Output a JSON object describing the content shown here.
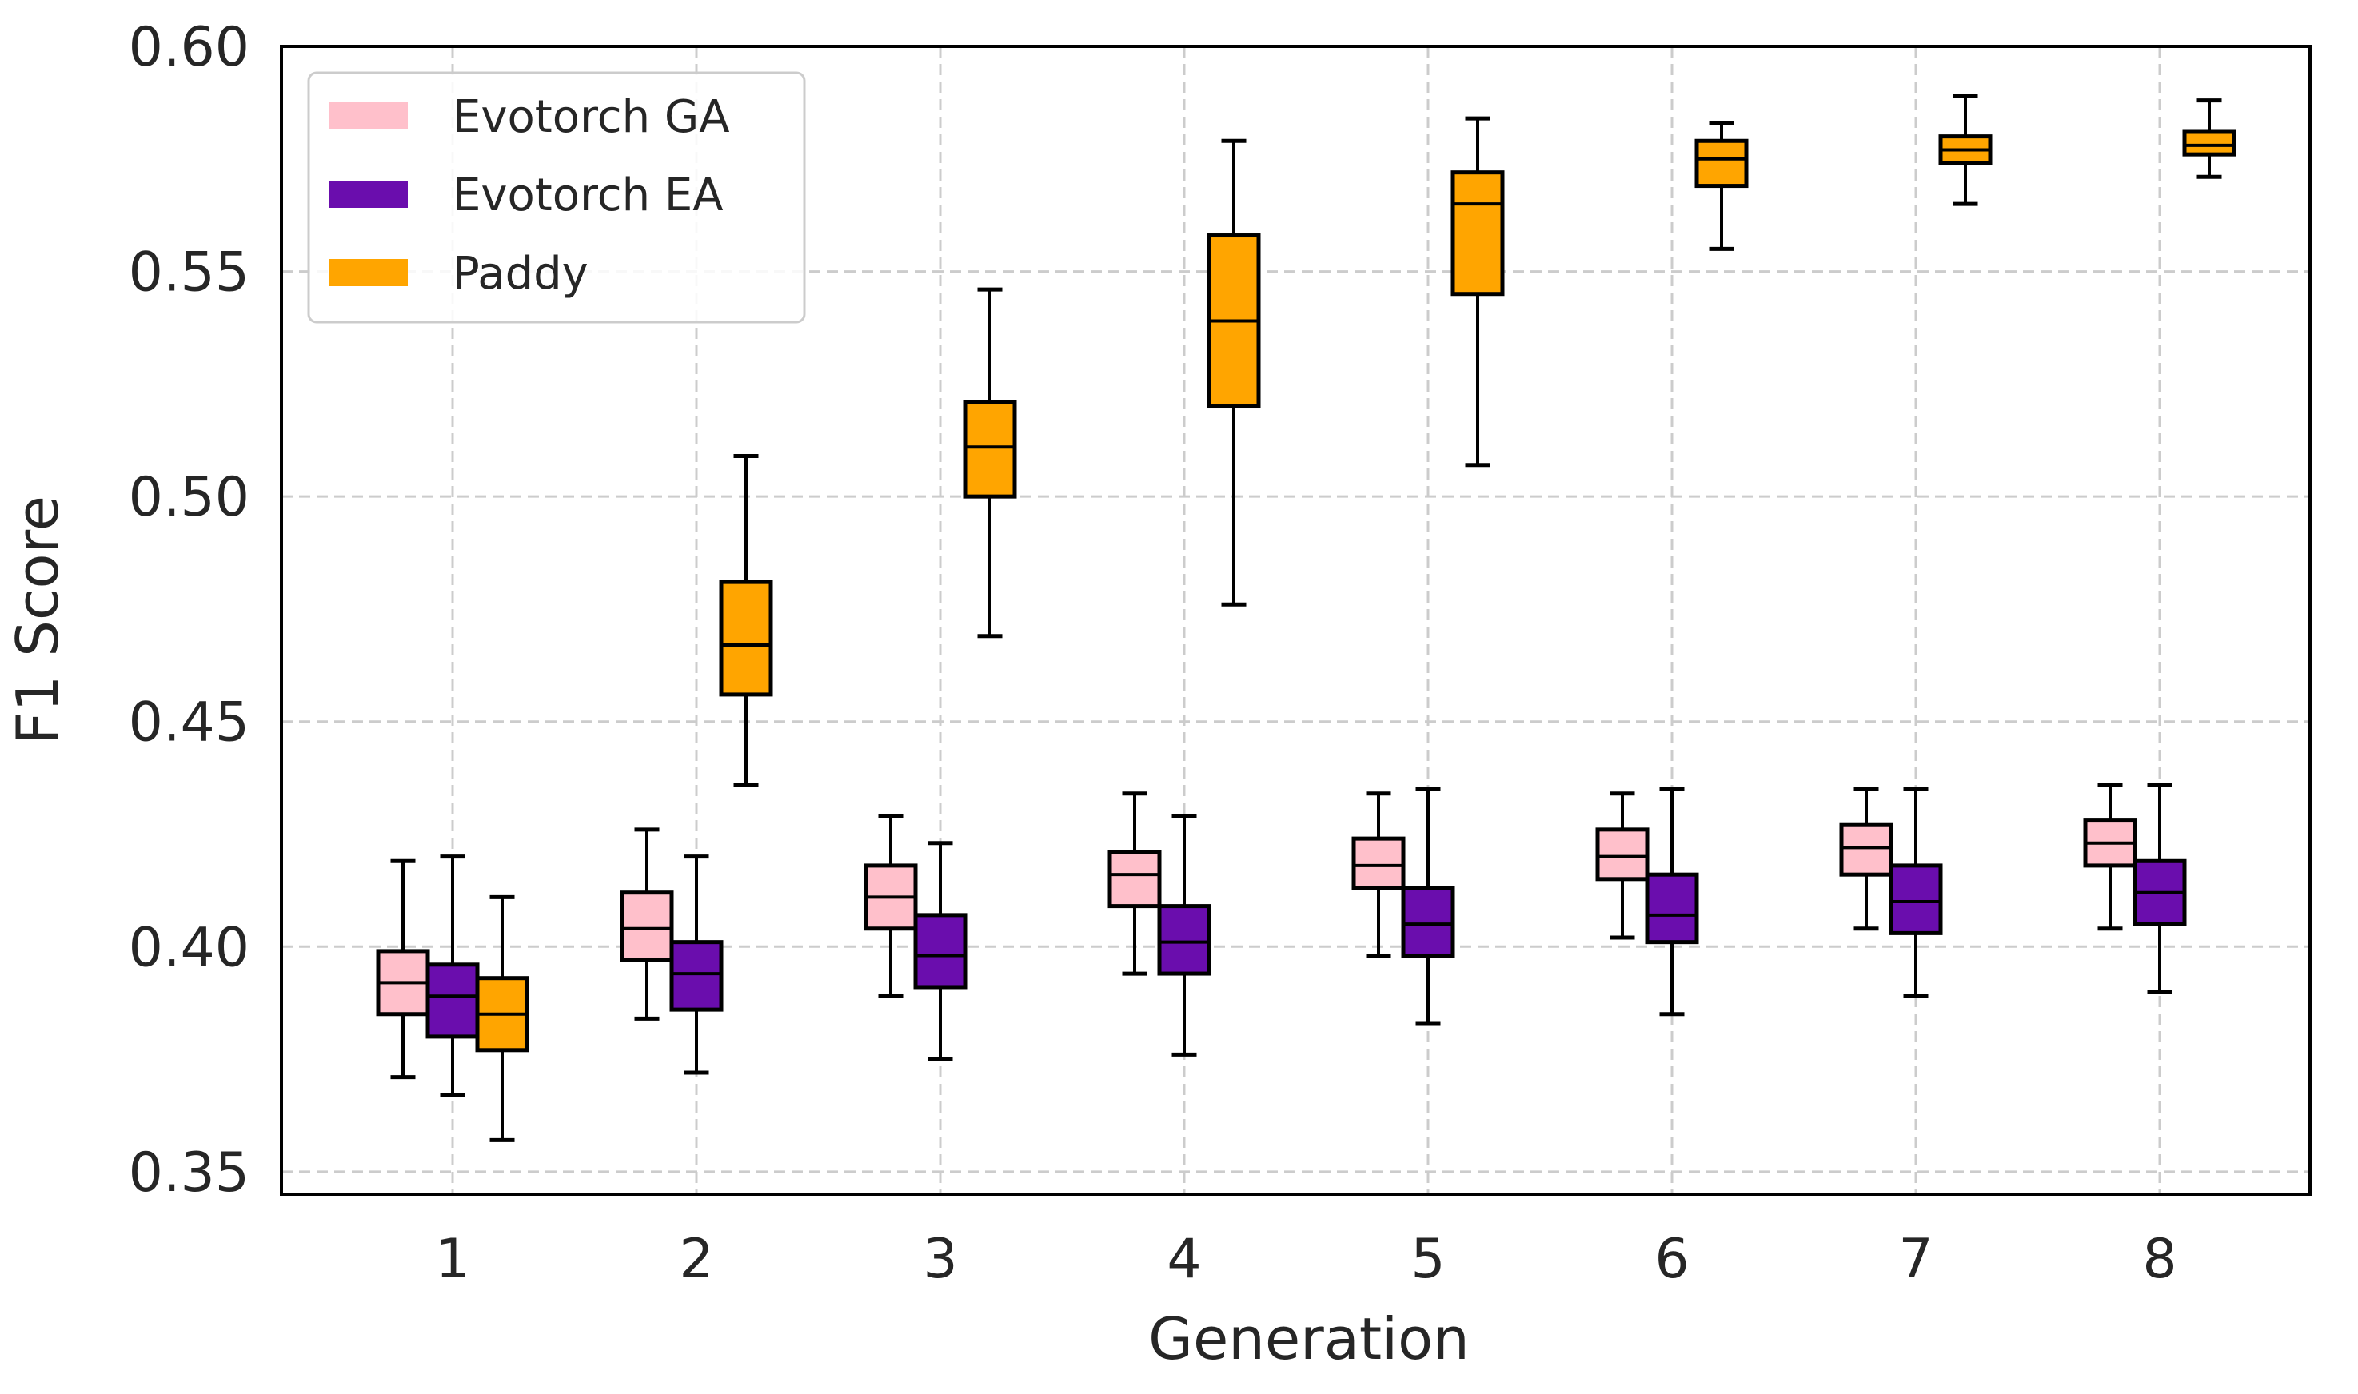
{
  "chart_data": {
    "type": "box",
    "xlabel": "Generation",
    "ylabel": "F1 Score",
    "ylim": [
      0.345,
      0.6
    ],
    "yticks": [
      "0.35",
      "0.40",
      "0.45",
      "0.50",
      "0.55",
      "0.60"
    ],
    "categories": [
      "1",
      "2",
      "3",
      "4",
      "5",
      "6",
      "7",
      "8"
    ],
    "grid": true,
    "legend_position": "top-left",
    "series": [
      {
        "name": "Evotorch GA",
        "color": "#FFC0CB",
        "boxes": [
          {
            "min": 0.371,
            "q1": 0.385,
            "median": 0.392,
            "q3": 0.399,
            "max": 0.419
          },
          {
            "min": 0.384,
            "q1": 0.397,
            "median": 0.404,
            "q3": 0.412,
            "max": 0.426
          },
          {
            "min": 0.389,
            "q1": 0.404,
            "median": 0.411,
            "q3": 0.418,
            "max": 0.429
          },
          {
            "min": 0.394,
            "q1": 0.409,
            "median": 0.416,
            "q3": 0.421,
            "max": 0.434
          },
          {
            "min": 0.398,
            "q1": 0.413,
            "median": 0.418,
            "q3": 0.424,
            "max": 0.434
          },
          {
            "min": 0.402,
            "q1": 0.415,
            "median": 0.42,
            "q3": 0.426,
            "max": 0.434
          },
          {
            "min": 0.404,
            "q1": 0.416,
            "median": 0.422,
            "q3": 0.427,
            "max": 0.435
          },
          {
            "min": 0.404,
            "q1": 0.418,
            "median": 0.423,
            "q3": 0.428,
            "max": 0.436
          }
        ]
      },
      {
        "name": "Evotorch EA",
        "color": "#6A0DAD",
        "boxes": [
          {
            "min": 0.367,
            "q1": 0.38,
            "median": 0.389,
            "q3": 0.396,
            "max": 0.42
          },
          {
            "min": 0.372,
            "q1": 0.386,
            "median": 0.394,
            "q3": 0.401,
            "max": 0.42
          },
          {
            "min": 0.375,
            "q1": 0.391,
            "median": 0.398,
            "q3": 0.407,
            "max": 0.423
          },
          {
            "min": 0.376,
            "q1": 0.394,
            "median": 0.401,
            "q3": 0.409,
            "max": 0.429
          },
          {
            "min": 0.383,
            "q1": 0.398,
            "median": 0.405,
            "q3": 0.413,
            "max": 0.435
          },
          {
            "min": 0.385,
            "q1": 0.401,
            "median": 0.407,
            "q3": 0.416,
            "max": 0.435
          },
          {
            "min": 0.389,
            "q1": 0.403,
            "median": 0.41,
            "q3": 0.418,
            "max": 0.435
          },
          {
            "min": 0.39,
            "q1": 0.405,
            "median": 0.412,
            "q3": 0.419,
            "max": 0.436
          }
        ]
      },
      {
        "name": "Paddy",
        "color": "#FFA500",
        "boxes": [
          {
            "min": 0.357,
            "q1": 0.377,
            "median": 0.385,
            "q3": 0.393,
            "max": 0.411
          },
          {
            "min": 0.436,
            "q1": 0.456,
            "median": 0.467,
            "q3": 0.481,
            "max": 0.509
          },
          {
            "min": 0.469,
            "q1": 0.5,
            "median": 0.511,
            "q3": 0.521,
            "max": 0.546
          },
          {
            "min": 0.476,
            "q1": 0.52,
            "median": 0.539,
            "q3": 0.558,
            "max": 0.579
          },
          {
            "min": 0.507,
            "q1": 0.545,
            "median": 0.565,
            "q3": 0.572,
            "max": 0.584
          },
          {
            "min": 0.555,
            "q1": 0.569,
            "median": 0.575,
            "q3": 0.579,
            "max": 0.583
          },
          {
            "min": 0.565,
            "q1": 0.574,
            "median": 0.577,
            "q3": 0.58,
            "max": 0.589
          },
          {
            "min": 0.571,
            "q1": 0.576,
            "median": 0.578,
            "q3": 0.581,
            "max": 0.588
          }
        ]
      }
    ]
  }
}
